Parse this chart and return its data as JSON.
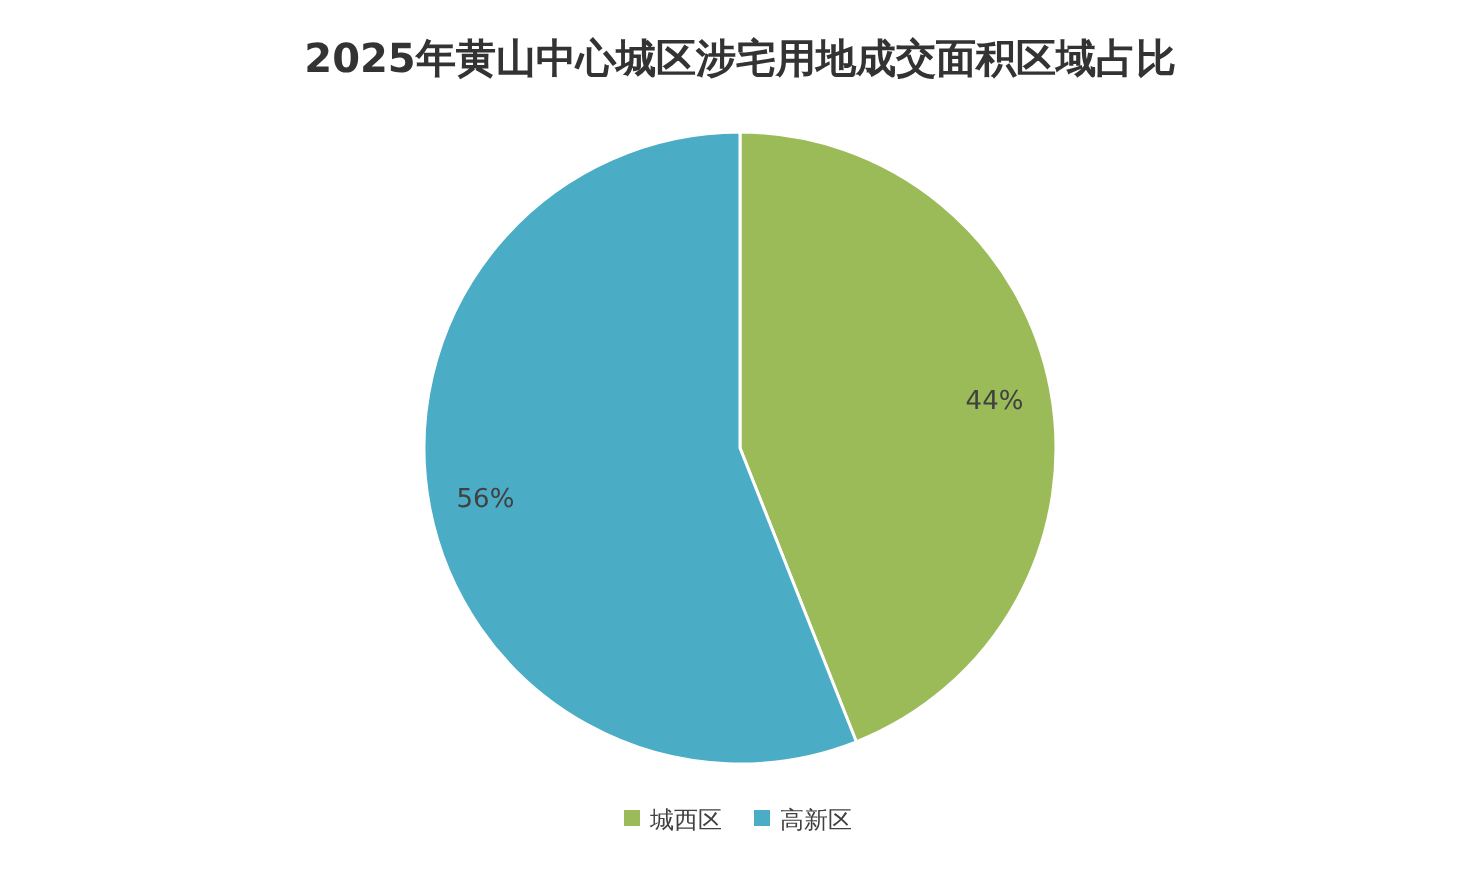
{
  "chart_data": {
    "type": "pie",
    "title": "2025年黄山中心城区涉宅用地成交面积区域占比",
    "categories": [
      "城西区",
      "高新区"
    ],
    "values": [
      44,
      56
    ],
    "colors": [
      "#9bbb59",
      "#4bacc6"
    ],
    "value_labels": [
      "44%",
      "56%"
    ],
    "legend": "bottom"
  }
}
